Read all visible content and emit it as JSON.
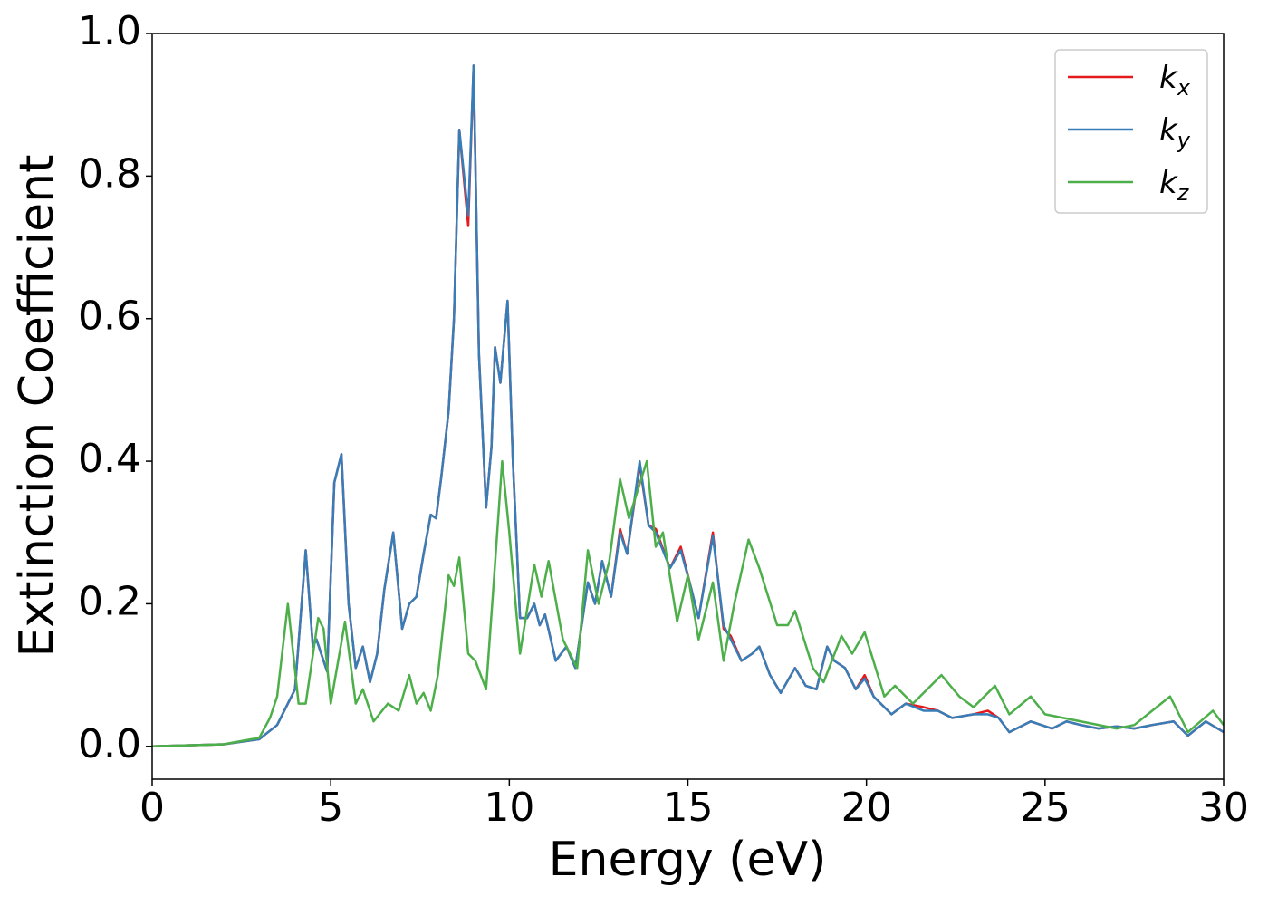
{
  "chart_data": {
    "type": "line",
    "xlabel": "Energy (eV)",
    "ylabel": "Extinction Coefficient",
    "xlim": [
      0,
      30
    ],
    "ylim": [
      -0.046,
      1.0
    ],
    "xticks": [
      0,
      5,
      10,
      15,
      20,
      25,
      30
    ],
    "yticks": [
      {
        "value": 0,
        "label": "0.0"
      },
      {
        "value": 0.2,
        "label": "0.2"
      },
      {
        "value": 0.4,
        "label": "0.4"
      },
      {
        "value": 0.6,
        "label": "0.6"
      },
      {
        "value": 0.8,
        "label": "0.8"
      },
      {
        "value": 1.0,
        "label": "1.0"
      }
    ],
    "grid": false,
    "legend": "upper right",
    "series": [
      {
        "name": "kx",
        "color": "#e41a1c",
        "x": [
          0,
          2,
          3,
          3.5,
          4.0,
          4.3,
          4.5,
          4.6,
          4.8,
          4.9,
          5.1,
          5.3,
          5.5,
          5.7,
          5.9,
          6.1,
          6.3,
          6.5,
          6.75,
          7.0,
          7.2,
          7.4,
          7.6,
          7.8,
          7.95,
          8.1,
          8.3,
          8.45,
          8.6,
          8.85,
          9.0,
          9.15,
          9.35,
          9.5,
          9.6,
          9.75,
          9.95,
          10.1,
          10.3,
          10.5,
          10.7,
          10.85,
          11.0,
          11.3,
          11.6,
          11.85,
          12.2,
          12.4,
          12.6,
          12.85,
          13.1,
          13.3,
          13.65,
          13.9,
          14.1,
          14.5,
          14.8,
          15.1,
          15.3,
          15.7,
          16.0,
          16.2,
          16.5,
          16.8,
          17.0,
          17.3,
          17.6,
          18.0,
          18.3,
          18.6,
          18.9,
          19.1,
          19.4,
          19.7,
          19.95,
          20.2,
          20.7,
          21.1,
          21.6,
          22.0,
          22.4,
          23.0,
          23.4,
          23.7,
          24.0,
          24.6,
          25.2,
          25.6,
          26.0,
          26.5,
          27.0,
          27.5,
          28.0,
          28.6,
          29.0,
          29.5,
          30
        ],
        "values": [
          0,
          0.003,
          0.01,
          0.03,
          0.08,
          0.275,
          0.14,
          0.15,
          0.12,
          0.105,
          0.37,
          0.41,
          0.2,
          0.11,
          0.14,
          0.09,
          0.13,
          0.22,
          0.3,
          0.165,
          0.2,
          0.21,
          0.27,
          0.325,
          0.32,
          0.38,
          0.47,
          0.6,
          0.865,
          0.73,
          0.955,
          0.55,
          0.335,
          0.42,
          0.56,
          0.51,
          0.625,
          0.4,
          0.18,
          0.18,
          0.2,
          0.17,
          0.185,
          0.12,
          0.14,
          0.11,
          0.23,
          0.2,
          0.26,
          0.21,
          0.305,
          0.27,
          0.395,
          0.31,
          0.305,
          0.25,
          0.28,
          0.22,
          0.18,
          0.3,
          0.165,
          0.155,
          0.12,
          0.13,
          0.14,
          0.1,
          0.075,
          0.11,
          0.085,
          0.08,
          0.14,
          0.12,
          0.11,
          0.08,
          0.1,
          0.07,
          0.045,
          0.06,
          0.055,
          0.05,
          0.04,
          0.045,
          0.05,
          0.04,
          0.02,
          0.035,
          0.025,
          0.035,
          0.03,
          0.025,
          0.028,
          0.025,
          0.03,
          0.035,
          0.015,
          0.035,
          0.02
        ]
      },
      {
        "name": "ky",
        "color": "#377eb8",
        "x": [
          0,
          2,
          3,
          3.5,
          4.0,
          4.3,
          4.5,
          4.6,
          4.8,
          4.9,
          5.1,
          5.3,
          5.5,
          5.7,
          5.9,
          6.1,
          6.3,
          6.5,
          6.75,
          7.0,
          7.2,
          7.4,
          7.6,
          7.8,
          7.95,
          8.1,
          8.3,
          8.45,
          8.6,
          8.85,
          9.0,
          9.15,
          9.35,
          9.5,
          9.6,
          9.75,
          9.95,
          10.1,
          10.3,
          10.5,
          10.7,
          10.85,
          11.0,
          11.3,
          11.6,
          11.85,
          12.2,
          12.4,
          12.6,
          12.85,
          13.1,
          13.3,
          13.65,
          13.9,
          14.1,
          14.5,
          14.8,
          15.1,
          15.3,
          15.7,
          16.0,
          16.2,
          16.5,
          16.8,
          17.0,
          17.3,
          17.6,
          18.0,
          18.3,
          18.6,
          18.9,
          19.1,
          19.4,
          19.7,
          19.95,
          20.2,
          20.7,
          21.1,
          21.6,
          22.0,
          22.4,
          23.0,
          23.4,
          23.7,
          24.0,
          24.6,
          25.2,
          25.6,
          26.0,
          26.5,
          27.0,
          27.5,
          28.0,
          28.6,
          29.0,
          29.5,
          30
        ],
        "values": [
          0,
          0.003,
          0.01,
          0.03,
          0.08,
          0.275,
          0.14,
          0.15,
          0.12,
          0.105,
          0.37,
          0.41,
          0.2,
          0.11,
          0.14,
          0.09,
          0.13,
          0.22,
          0.3,
          0.165,
          0.2,
          0.21,
          0.27,
          0.325,
          0.32,
          0.38,
          0.47,
          0.6,
          0.865,
          0.745,
          0.955,
          0.55,
          0.335,
          0.42,
          0.56,
          0.51,
          0.625,
          0.4,
          0.18,
          0.18,
          0.2,
          0.17,
          0.185,
          0.12,
          0.14,
          0.11,
          0.23,
          0.2,
          0.26,
          0.21,
          0.3,
          0.27,
          0.4,
          0.31,
          0.3,
          0.25,
          0.275,
          0.22,
          0.18,
          0.295,
          0.17,
          0.15,
          0.12,
          0.13,
          0.14,
          0.1,
          0.075,
          0.11,
          0.085,
          0.08,
          0.14,
          0.12,
          0.11,
          0.08,
          0.095,
          0.07,
          0.045,
          0.06,
          0.05,
          0.05,
          0.04,
          0.045,
          0.045,
          0.04,
          0.02,
          0.035,
          0.025,
          0.035,
          0.03,
          0.025,
          0.028,
          0.025,
          0.03,
          0.035,
          0.015,
          0.035,
          0.02
        ]
      },
      {
        "name": "kz",
        "color": "#4daf4a",
        "x": [
          0,
          2,
          3,
          3.3,
          3.5,
          3.8,
          4.1,
          4.3,
          4.65,
          4.8,
          5.0,
          5.4,
          5.7,
          5.9,
          6.2,
          6.6,
          6.9,
          7.2,
          7.4,
          7.6,
          7.8,
          8.0,
          8.3,
          8.45,
          8.6,
          8.85,
          9.05,
          9.35,
          9.55,
          9.8,
          10.0,
          10.3,
          10.7,
          10.9,
          11.1,
          11.5,
          11.9,
          12.2,
          12.5,
          12.8,
          13.1,
          13.35,
          13.85,
          14.1,
          14.3,
          14.7,
          15.0,
          15.3,
          15.7,
          16.0,
          16.3,
          16.7,
          17.0,
          17.5,
          17.8,
          18.0,
          18.5,
          18.8,
          19.3,
          19.6,
          19.95,
          20.5,
          20.8,
          21.3,
          21.7,
          22.1,
          22.6,
          23.0,
          23.6,
          24.0,
          24.6,
          25.0,
          26.0,
          27.0,
          27.5,
          28.0,
          28.5,
          29.0,
          29.7,
          30
        ],
        "values": [
          0,
          0.003,
          0.012,
          0.04,
          0.07,
          0.2,
          0.06,
          0.06,
          0.18,
          0.165,
          0.06,
          0.175,
          0.06,
          0.08,
          0.035,
          0.06,
          0.05,
          0.1,
          0.06,
          0.075,
          0.05,
          0.1,
          0.24,
          0.225,
          0.265,
          0.13,
          0.12,
          0.08,
          0.22,
          0.4,
          0.3,
          0.13,
          0.255,
          0.21,
          0.26,
          0.15,
          0.11,
          0.275,
          0.2,
          0.26,
          0.375,
          0.32,
          0.4,
          0.28,
          0.3,
          0.175,
          0.24,
          0.15,
          0.23,
          0.12,
          0.2,
          0.29,
          0.25,
          0.17,
          0.17,
          0.19,
          0.11,
          0.09,
          0.155,
          0.13,
          0.16,
          0.07,
          0.085,
          0.06,
          0.08,
          0.1,
          0.07,
          0.055,
          0.085,
          0.045,
          0.07,
          0.045,
          0.035,
          0.025,
          0.03,
          0.05,
          0.07,
          0.02,
          0.05,
          0.03
        ]
      }
    ]
  }
}
